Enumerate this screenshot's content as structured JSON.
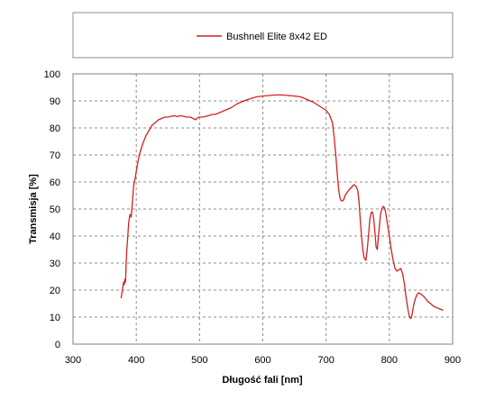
{
  "chart_data": {
    "type": "line",
    "title": "",
    "xlabel": "Długość fali [nm]",
    "ylabel": "Transmisja [%]",
    "xlim": [
      300,
      900
    ],
    "ylim": [
      0,
      100
    ],
    "x_ticks": [
      "300",
      "400",
      "500",
      "600",
      "700",
      "800",
      "900"
    ],
    "y_ticks": [
      "0",
      "10",
      "20",
      "30",
      "40",
      "50",
      "60",
      "70",
      "80",
      "90",
      "100"
    ],
    "grid": true,
    "legend_position": "top",
    "line_color": "#d42020",
    "series": [
      {
        "name": "Bushnell Elite 8x42 ED",
        "x": [
          376,
          378,
          380,
          381,
          382,
          383,
          384,
          385,
          386,
          388,
          390,
          392,
          394,
          396,
          398,
          400,
          403,
          406,
          410,
          415,
          420,
          425,
          430,
          435,
          440,
          445,
          450,
          455,
          460,
          465,
          470,
          475,
          480,
          485,
          490,
          494,
          497,
          500,
          505,
          510,
          515,
          520,
          525,
          530,
          535,
          540,
          550,
          560,
          570,
          580,
          590,
          600,
          610,
          620,
          630,
          640,
          650,
          660,
          670,
          680,
          690,
          700,
          705,
          710,
          713,
          716,
          718,
          720,
          722,
          724,
          726,
          728,
          730,
          733,
          736,
          740,
          744,
          747,
          750,
          752,
          754,
          756,
          758,
          760,
          763,
          765,
          767,
          769,
          771,
          773,
          775,
          777,
          779,
          781,
          782,
          784,
          786,
          788,
          790,
          792,
          794,
          796,
          798,
          800,
          803,
          806,
          809,
          812,
          815,
          818,
          821,
          824,
          826,
          828,
          830,
          832,
          834,
          836,
          838,
          840,
          843,
          846,
          850,
          855,
          860,
          865,
          870,
          875,
          880,
          885
        ],
        "y": [
          17,
          20,
          23,
          22,
          24,
          23,
          30,
          35,
          38,
          45,
          48,
          47,
          53,
          59,
          61,
          64,
          68,
          71,
          74,
          77,
          79,
          81,
          82,
          83,
          83.5,
          84,
          84,
          84.3,
          84.5,
          84.2,
          84.5,
          84.3,
          84,
          84,
          83.5,
          83,
          83.8,
          84,
          84,
          84.3,
          84.6,
          85,
          85,
          85.5,
          86,
          86.5,
          87.5,
          89,
          90,
          90.8,
          91.5,
          91.8,
          92,
          92.2,
          92.2,
          92,
          91.8,
          91.5,
          90.5,
          89.5,
          88,
          86.5,
          85,
          82,
          76,
          68,
          62,
          57,
          54,
          53,
          53,
          53.5,
          55,
          56,
          57,
          58,
          59,
          58.5,
          57,
          53,
          46,
          40,
          35,
          32,
          31,
          35,
          40,
          46,
          48.5,
          49,
          47,
          42,
          36,
          35,
          38,
          43,
          48,
          50,
          51,
          50.5,
          49,
          46,
          43,
          40,
          35,
          31,
          28,
          27,
          27.5,
          28,
          26,
          22,
          18,
          15,
          12,
          10,
          9.5,
          11,
          14,
          16,
          18,
          19,
          18.5,
          17.5,
          16,
          15,
          14,
          13.5,
          13,
          12.5
        ]
      }
    ]
  }
}
